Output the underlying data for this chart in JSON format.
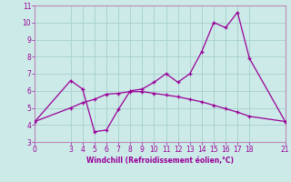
{
  "xlabel": "Windchill (Refroidissement éolien,°C)",
  "background_color": "#cceae7",
  "line_color": "#990099",
  "grid_color": "#aad4d0",
  "border_color": "#bb88bb",
  "line1_x": [
    0,
    3,
    4,
    5,
    6,
    7,
    8,
    9,
    10,
    11,
    12,
    13,
    14,
    15,
    16,
    17,
    18,
    21
  ],
  "line1_y": [
    4.2,
    6.6,
    6.1,
    3.6,
    3.7,
    4.9,
    6.0,
    6.1,
    6.5,
    7.0,
    6.5,
    7.0,
    8.3,
    10.0,
    9.7,
    10.6,
    7.9,
    4.2
  ],
  "line2_x": [
    0,
    3,
    4,
    5,
    6,
    7,
    8,
    9,
    10,
    11,
    12,
    13,
    14,
    15,
    16,
    17,
    18,
    21
  ],
  "line2_y": [
    4.2,
    5.0,
    5.3,
    5.5,
    5.8,
    5.85,
    5.95,
    5.95,
    5.85,
    5.75,
    5.65,
    5.5,
    5.35,
    5.15,
    4.95,
    4.75,
    4.5,
    4.2
  ],
  "xlim": [
    0,
    21
  ],
  "ylim": [
    3,
    11
  ],
  "xticks": [
    0,
    3,
    4,
    5,
    6,
    7,
    8,
    9,
    10,
    11,
    12,
    13,
    14,
    15,
    16,
    17,
    18,
    21
  ],
  "yticks": [
    3,
    4,
    5,
    6,
    7,
    8,
    9,
    10,
    11
  ]
}
